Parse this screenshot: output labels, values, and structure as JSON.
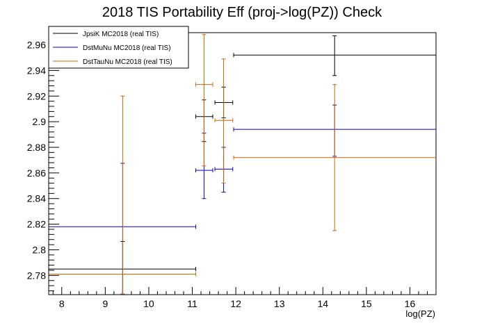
{
  "chart_data": {
    "type": "scatter",
    "title": "2018 TIS Portability Eff (proj->log(PZ)) Check",
    "xlabel": "log(PZ)",
    "ylabel": "",
    "xlim": [
      7.7,
      16.6
    ],
    "ylim": [
      2.765,
      2.9695
    ],
    "x_ticks": [
      8,
      9,
      10,
      11,
      12,
      13,
      14,
      15,
      16
    ],
    "y_ticks": [
      2.78,
      2.8,
      2.82,
      2.84,
      2.86,
      2.88,
      2.9,
      2.92,
      2.94,
      2.96
    ],
    "grid": false,
    "legend_position": "top-left",
    "series": [
      {
        "name": "JpsiK MC2018 (real TIS)",
        "color": "#000000",
        "points": [
          {
            "x": 9.4,
            "xlo": 7.7,
            "xhi": 11.08,
            "y": 2.785,
            "ylo": 2.7655,
            "yhi": 2.8065
          },
          {
            "x": 11.27,
            "xlo": 11.08,
            "xhi": 11.47,
            "y": 2.904,
            "ylo": 2.8845,
            "yhi": 2.917
          },
          {
            "x": 11.72,
            "xlo": 11.52,
            "xhi": 11.93,
            "y": 2.915,
            "ylo": 2.903,
            "yhi": 2.927
          },
          {
            "x": 14.27,
            "xlo": 11.95,
            "xhi": 16.6,
            "y": 2.952,
            "ylo": 2.936,
            "yhi": 2.967
          }
        ]
      },
      {
        "name": "DstMuNu MC2018 (real TIS)",
        "color": "#0000cc",
        "points": [
          {
            "x": 9.4,
            "xlo": 7.7,
            "xhi": 11.08,
            "y": 2.818,
            "ylo": 2.7655,
            "yhi": 2.8675
          },
          {
            "x": 11.27,
            "xlo": 11.08,
            "xhi": 11.47,
            "y": 2.862,
            "ylo": 2.84,
            "yhi": 2.891
          },
          {
            "x": 11.72,
            "xlo": 11.52,
            "xhi": 11.93,
            "y": 2.863,
            "ylo": 2.845,
            "yhi": 2.88
          },
          {
            "x": 14.27,
            "xlo": 11.95,
            "xhi": 16.6,
            "y": 2.894,
            "ylo": 2.873,
            "yhi": 2.913
          }
        ]
      },
      {
        "name": "DstTauNu MC2018 (real TIS)",
        "color": "#cc6600",
        "points": [
          {
            "x": 9.4,
            "xlo": 7.7,
            "xhi": 11.08,
            "y": 2.781,
            "ylo": 2.7655,
            "yhi": 2.92
          },
          {
            "x": 11.27,
            "xlo": 11.08,
            "xhi": 11.47,
            "y": 2.929,
            "ylo": 2.8655,
            "yhi": 2.968
          },
          {
            "x": 11.72,
            "xlo": 11.52,
            "xhi": 11.93,
            "y": 2.901,
            "ylo": 2.852,
            "yhi": 2.949
          },
          {
            "x": 14.27,
            "xlo": 11.95,
            "xhi": 16.6,
            "y": 2.872,
            "ylo": 2.815,
            "yhi": 2.929
          }
        ]
      }
    ]
  }
}
